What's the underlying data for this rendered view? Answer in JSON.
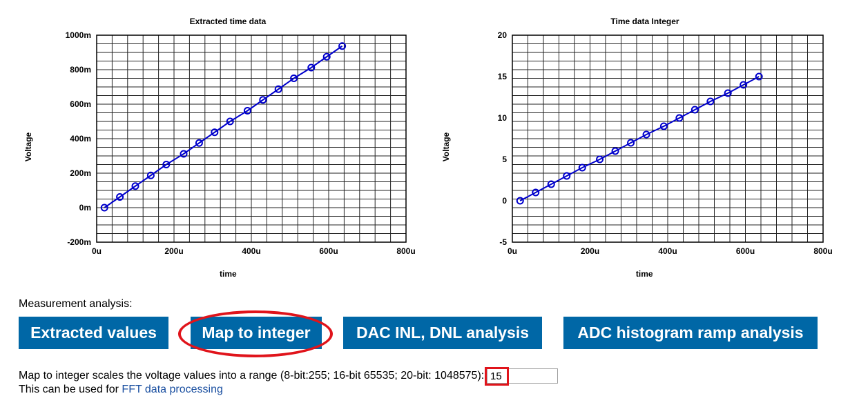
{
  "chart_data": [
    {
      "type": "line",
      "title": "Extracted time data",
      "xlabel": "time",
      "ylabel": "Voltage",
      "xlim": [
        0,
        800
      ],
      "ylim": [
        -200,
        1000
      ],
      "x_ticks": [
        "0u",
        "200u",
        "400u",
        "600u",
        "800u"
      ],
      "y_ticks": [
        "-200m",
        "0m",
        "200m",
        "400m",
        "600m",
        "800m",
        "1000m"
      ],
      "x_tick_values": [
        0,
        200,
        400,
        600,
        800
      ],
      "y_tick_values": [
        -200,
        0,
        200,
        400,
        600,
        800,
        1000
      ],
      "grid": true,
      "series": [
        {
          "color": "#0000cc",
          "x": [
            20,
            60,
            100,
            140,
            180,
            225,
            265,
            305,
            345,
            390,
            430,
            470,
            510,
            555,
            595,
            635
          ],
          "y": [
            0,
            62,
            125,
            187,
            250,
            312,
            375,
            437,
            500,
            562,
            625,
            687,
            750,
            812,
            875,
            937
          ]
        }
      ]
    },
    {
      "type": "line",
      "title": "Time data Integer",
      "xlabel": "time",
      "ylabel": "Voltage",
      "xlim": [
        0,
        800
      ],
      "ylim": [
        -5,
        20
      ],
      "x_ticks": [
        "0u",
        "200u",
        "400u",
        "600u",
        "800u"
      ],
      "y_ticks": [
        "-5",
        "0",
        "5",
        "10",
        "15",
        "20"
      ],
      "x_tick_values": [
        0,
        200,
        400,
        600,
        800
      ],
      "y_tick_values": [
        -5,
        0,
        5,
        10,
        15,
        20
      ],
      "grid": true,
      "series": [
        {
          "color": "#0000cc",
          "x": [
            20,
            60,
            100,
            140,
            180,
            225,
            265,
            305,
            345,
            390,
            430,
            470,
            510,
            555,
            595,
            635
          ],
          "y": [
            0,
            1,
            2,
            3,
            4,
            5,
            6,
            7,
            8,
            9,
            10,
            11,
            12,
            13,
            14,
            15
          ]
        }
      ]
    }
  ],
  "analysis": {
    "label": "Measurement analysis:",
    "buttons": {
      "extracted": "Extracted values",
      "map": "Map to integer",
      "dac": "DAC INL, DNL analysis",
      "adc": "ADC histogram ramp analysis"
    }
  },
  "map_description": {
    "text": "Map to integer scales the voltage values into a range (8-bit:255; 16-bit 65535; 20-bit: 1048575):",
    "range_value": "15",
    "line2_prefix": "This can be used for ",
    "line2_link": "FFT data processing"
  },
  "colors": {
    "accent_button": "#0067a6",
    "highlight": "#e0141b",
    "series": "#0000cc"
  }
}
